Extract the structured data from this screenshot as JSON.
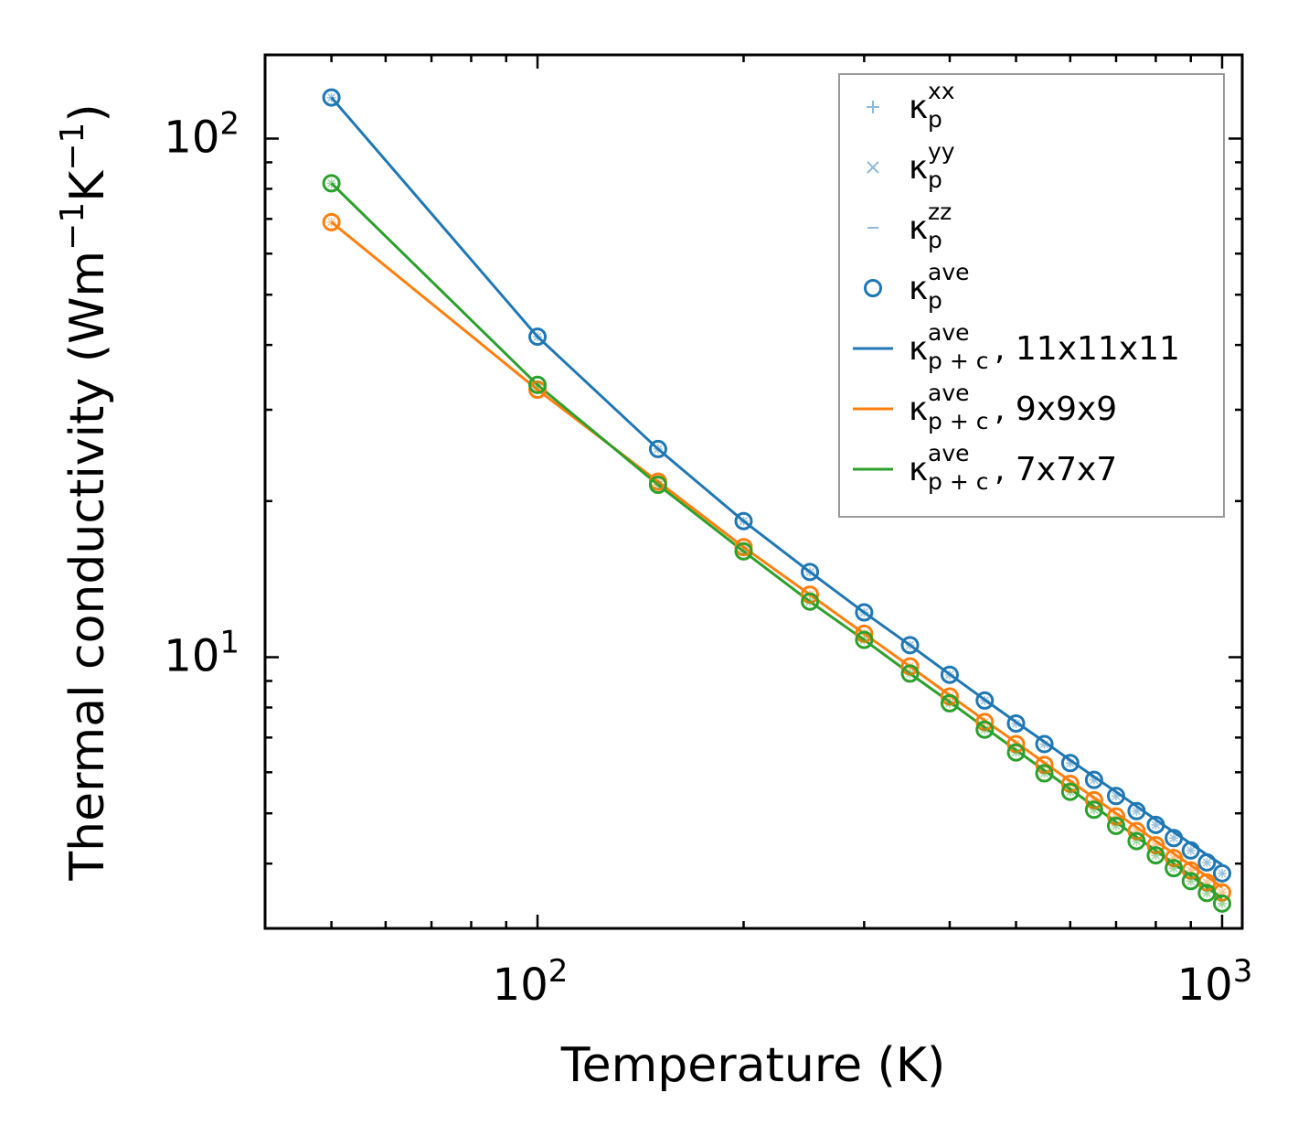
{
  "chart_data": {
    "type": "line",
    "xscale": "log",
    "yscale": "log",
    "xlabel": "Temperature (K)",
    "ylabel": {
      "main": "Thermal conductivity (Wm",
      "exp1": "−1",
      "mid": "K",
      "exp2": "−1",
      "end": ")"
    },
    "xlim": [
      40,
      1070
    ],
    "ylim": [
      3.0,
      145
    ],
    "x_major_ticks": [
      {
        "value": 100,
        "base": "10",
        "exp": "2"
      },
      {
        "value": 1000,
        "base": "10",
        "exp": "3"
      }
    ],
    "y_major_ticks": [
      {
        "value": 10,
        "base": "10",
        "exp": "1"
      },
      {
        "value": 100,
        "base": "10",
        "exp": "2"
      }
    ],
    "x": [
      50,
      100,
      150,
      200,
      250,
      300,
      350,
      400,
      450,
      500,
      550,
      600,
      650,
      700,
      750,
      800,
      850,
      900,
      950,
      1000
    ],
    "series": [
      {
        "name": "11x11x11",
        "color": "#1f77b4",
        "markers": [
          120.0,
          41.5,
          25.2,
          18.3,
          14.6,
          12.2,
          10.55,
          9.25,
          8.25,
          7.45,
          6.8,
          6.25,
          5.8,
          5.4,
          5.05,
          4.75,
          4.48,
          4.24,
          4.02,
          3.83
        ],
        "line": [
          120.0,
          41.5,
          25.2,
          18.3,
          14.6,
          12.2,
          10.55,
          9.27,
          8.28,
          7.5,
          6.87,
          6.33,
          5.88,
          5.5,
          5.16,
          4.86,
          4.6,
          4.37,
          4.16,
          3.98
        ]
      },
      {
        "name": "9x9x9",
        "color": "#ff7f0e",
        "markers": [
          69.0,
          32.8,
          21.8,
          16.3,
          13.2,
          11.1,
          9.6,
          8.4,
          7.5,
          6.8,
          6.2,
          5.7,
          5.3,
          4.93,
          4.62,
          4.34,
          4.1,
          3.88,
          3.68,
          3.52
        ],
        "line": [
          69.0,
          32.8,
          21.8,
          16.3,
          13.2,
          11.1,
          9.6,
          8.45,
          7.55,
          6.85,
          6.26,
          5.77,
          5.36,
          5.0,
          4.7,
          4.42,
          4.18,
          3.97,
          3.78,
          3.6
        ]
      },
      {
        "name": "7x7x7",
        "color": "#2ca02c",
        "markers": [
          82.0,
          33.5,
          21.5,
          16.0,
          12.8,
          10.8,
          9.3,
          8.15,
          7.25,
          6.55,
          5.97,
          5.5,
          5.08,
          4.73,
          4.42,
          4.15,
          3.92,
          3.7,
          3.51,
          3.35
        ],
        "line": [
          82.0,
          33.5,
          21.5,
          16.0,
          12.8,
          10.8,
          9.3,
          8.2,
          7.32,
          6.62,
          6.05,
          5.57,
          5.16,
          4.81,
          4.5,
          4.24,
          4.0,
          3.79,
          3.6,
          3.43
        ]
      }
    ],
    "legend": {
      "position": "top-right",
      "entries": [
        {
          "symbol": "+",
          "base": "κ",
          "sub": "p",
          "sup": "xx",
          "suffix": "",
          "color": "#8fb9d9"
        },
        {
          "symbol": "×",
          "base": "κ",
          "sub": "p",
          "sup": "yy",
          "suffix": "",
          "color": "#8fb9d9"
        },
        {
          "symbol": "–",
          "base": "κ",
          "sub": "p",
          "sup": "zz",
          "suffix": "",
          "color": "#8fb9d9"
        },
        {
          "symbol": "o",
          "base": "κ",
          "sub": "p",
          "sup": "ave",
          "suffix": "",
          "color": "#1f77b4"
        },
        {
          "symbol": "line",
          "base": "κ",
          "sub": "p + c",
          "sup": "ave",
          "suffix": ", 11x11x11",
          "color": "#1f77b4"
        },
        {
          "symbol": "line",
          "base": "κ",
          "sub": "p + c",
          "sup": "ave",
          "suffix": ", 9x9x9",
          "color": "#ff7f0e"
        },
        {
          "symbol": "line",
          "base": "κ",
          "sub": "p + c",
          "sup": "ave",
          "suffix": ", 7x7x7",
          "color": "#2ca02c"
        }
      ]
    }
  }
}
